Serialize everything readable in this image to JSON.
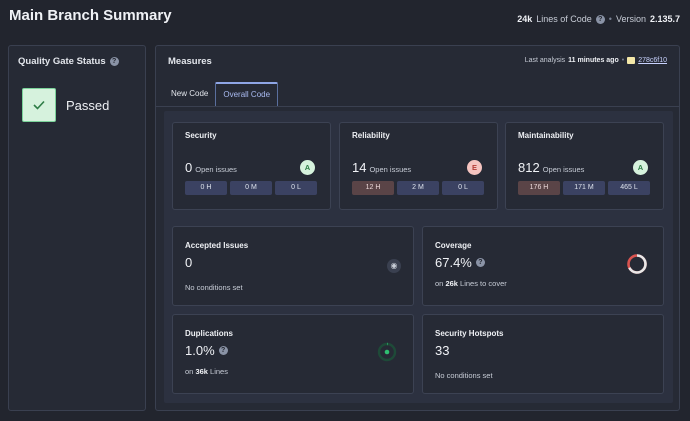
{
  "header": {
    "title": "Main Branch Summary",
    "loc_value": "24k",
    "loc_label": "Lines of Code",
    "separator": "•",
    "version_label": "Version",
    "version_value": "2.135.7"
  },
  "quality_gate": {
    "title": "Quality Gate Status",
    "status": "Passed",
    "icon": "checkmark-icon"
  },
  "measures": {
    "title": "Measures",
    "last_analysis_label": "Last analysis",
    "last_analysis_value": "11 minutes ago",
    "separator": "•",
    "commit": "278c6f10",
    "tabs": [
      {
        "label": "New Code",
        "active": false
      },
      {
        "label": "Overall Code",
        "active": true
      }
    ]
  },
  "security": {
    "title": "Security",
    "value": "0",
    "sub": "Open issues",
    "rating": "A",
    "pills": [
      "0 H",
      "0 M",
      "0 L"
    ]
  },
  "reliability": {
    "title": "Reliability",
    "value": "14",
    "sub": "Open issues",
    "rating": "E",
    "pills": [
      "12 H",
      "2 M",
      "0 L"
    ]
  },
  "maintainability": {
    "title": "Maintainability",
    "value": "812",
    "sub": "Open issues",
    "rating": "A",
    "pills": [
      "176 H",
      "171 M",
      "465 L"
    ]
  },
  "accepted": {
    "title": "Accepted Issues",
    "value": "0",
    "note": "No conditions set"
  },
  "coverage": {
    "title": "Coverage",
    "value": "67.4%",
    "sub_prefix": "on",
    "sub_bold": "26k",
    "sub_suffix": "Lines to cover",
    "percent": 67.4
  },
  "duplications": {
    "title": "Duplications",
    "value": "1.0%",
    "sub_prefix": "on",
    "sub_bold": "36k",
    "sub_suffix": "Lines",
    "percent": 1.0
  },
  "hotspots": {
    "title": "Security Hotspots",
    "value": "33",
    "note": "No conditions set"
  },
  "colors": {
    "accent": "#8fa6e6",
    "pass": "#d6f2dd",
    "fail": "#f5c4c0",
    "high_severity": "#5a4447",
    "coverage_arc": "#e8e8e8",
    "coverage_gap": "#d9534f",
    "duplication_arc": "#2fbf71"
  }
}
